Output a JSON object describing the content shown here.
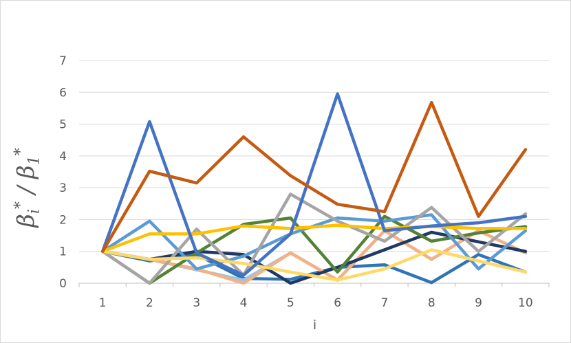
{
  "chart_data": {
    "type": "line",
    "title": "",
    "xlabel": "i",
    "ylabel": {
      "lead": "β",
      "num_sub": "i",
      "num_sup": "*",
      "sep": " / β",
      "den_sub": "1",
      "den_sup": "*"
    },
    "x": [
      1,
      2,
      3,
      4,
      5,
      6,
      7,
      8,
      9,
      10
    ],
    "ylim": [
      0,
      7
    ],
    "yticks": [
      0,
      1,
      2,
      3,
      4,
      5,
      6,
      7
    ],
    "grid": true,
    "legend": "none",
    "series": [
      {
        "color": "#2e75b6",
        "values": [
          1,
          0.7,
          0.9,
          0.15,
          0.12,
          0.5,
          0.58,
          0.02,
          0.9,
          0.35
        ]
      },
      {
        "color": "#9dc3e6",
        "values": [
          1,
          0.75,
          0.42,
          0.1,
          0.95,
          0.1,
          1.65,
          0.75,
          1.65,
          0.95
        ]
      },
      {
        "color": "#f4b183",
        "values": [
          1,
          0.75,
          0.45,
          0.0,
          0.95,
          0.1,
          1.65,
          0.75,
          1.65,
          0.95
        ]
      },
      {
        "color": "#203864",
        "values": [
          1,
          0.75,
          1.0,
          0.9,
          0.0,
          0.5,
          1.05,
          1.6,
          1.3,
          1.0
        ]
      },
      {
        "color": "#548235",
        "values": [
          1,
          0.0,
          0.95,
          1.85,
          2.05,
          0.35,
          2.1,
          1.32,
          1.58,
          1.78
        ]
      },
      {
        "color": "#5b9bd5",
        "values": [
          1,
          1.95,
          0.45,
          0.85,
          1.55,
          2.05,
          1.95,
          2.15,
          0.45,
          1.65
        ]
      },
      {
        "color": "#a5a5a5",
        "values": [
          1,
          0.0,
          1.7,
          0.25,
          2.8,
          1.95,
          1.32,
          2.38,
          1.0,
          2.18
        ]
      },
      {
        "color": "#ffc000",
        "values": [
          1,
          1.55,
          1.55,
          1.8,
          1.72,
          1.82,
          1.72,
          1.78,
          1.72,
          1.72
        ]
      },
      {
        "color": "#ffd966",
        "values": [
          1,
          0.75,
          0.8,
          0.62,
          0.35,
          0.1,
          0.45,
          1.05,
          0.7,
          0.35
        ]
      },
      {
        "color": "#4472c4",
        "values": [
          1,
          5.08,
          0.95,
          0.25,
          1.55,
          5.95,
          1.65,
          1.8,
          1.9,
          2.1
        ]
      },
      {
        "color": "#c55a11",
        "values": [
          1,
          3.52,
          3.15,
          4.6,
          3.38,
          2.48,
          2.25,
          5.68,
          2.1,
          4.2
        ]
      }
    ]
  }
}
